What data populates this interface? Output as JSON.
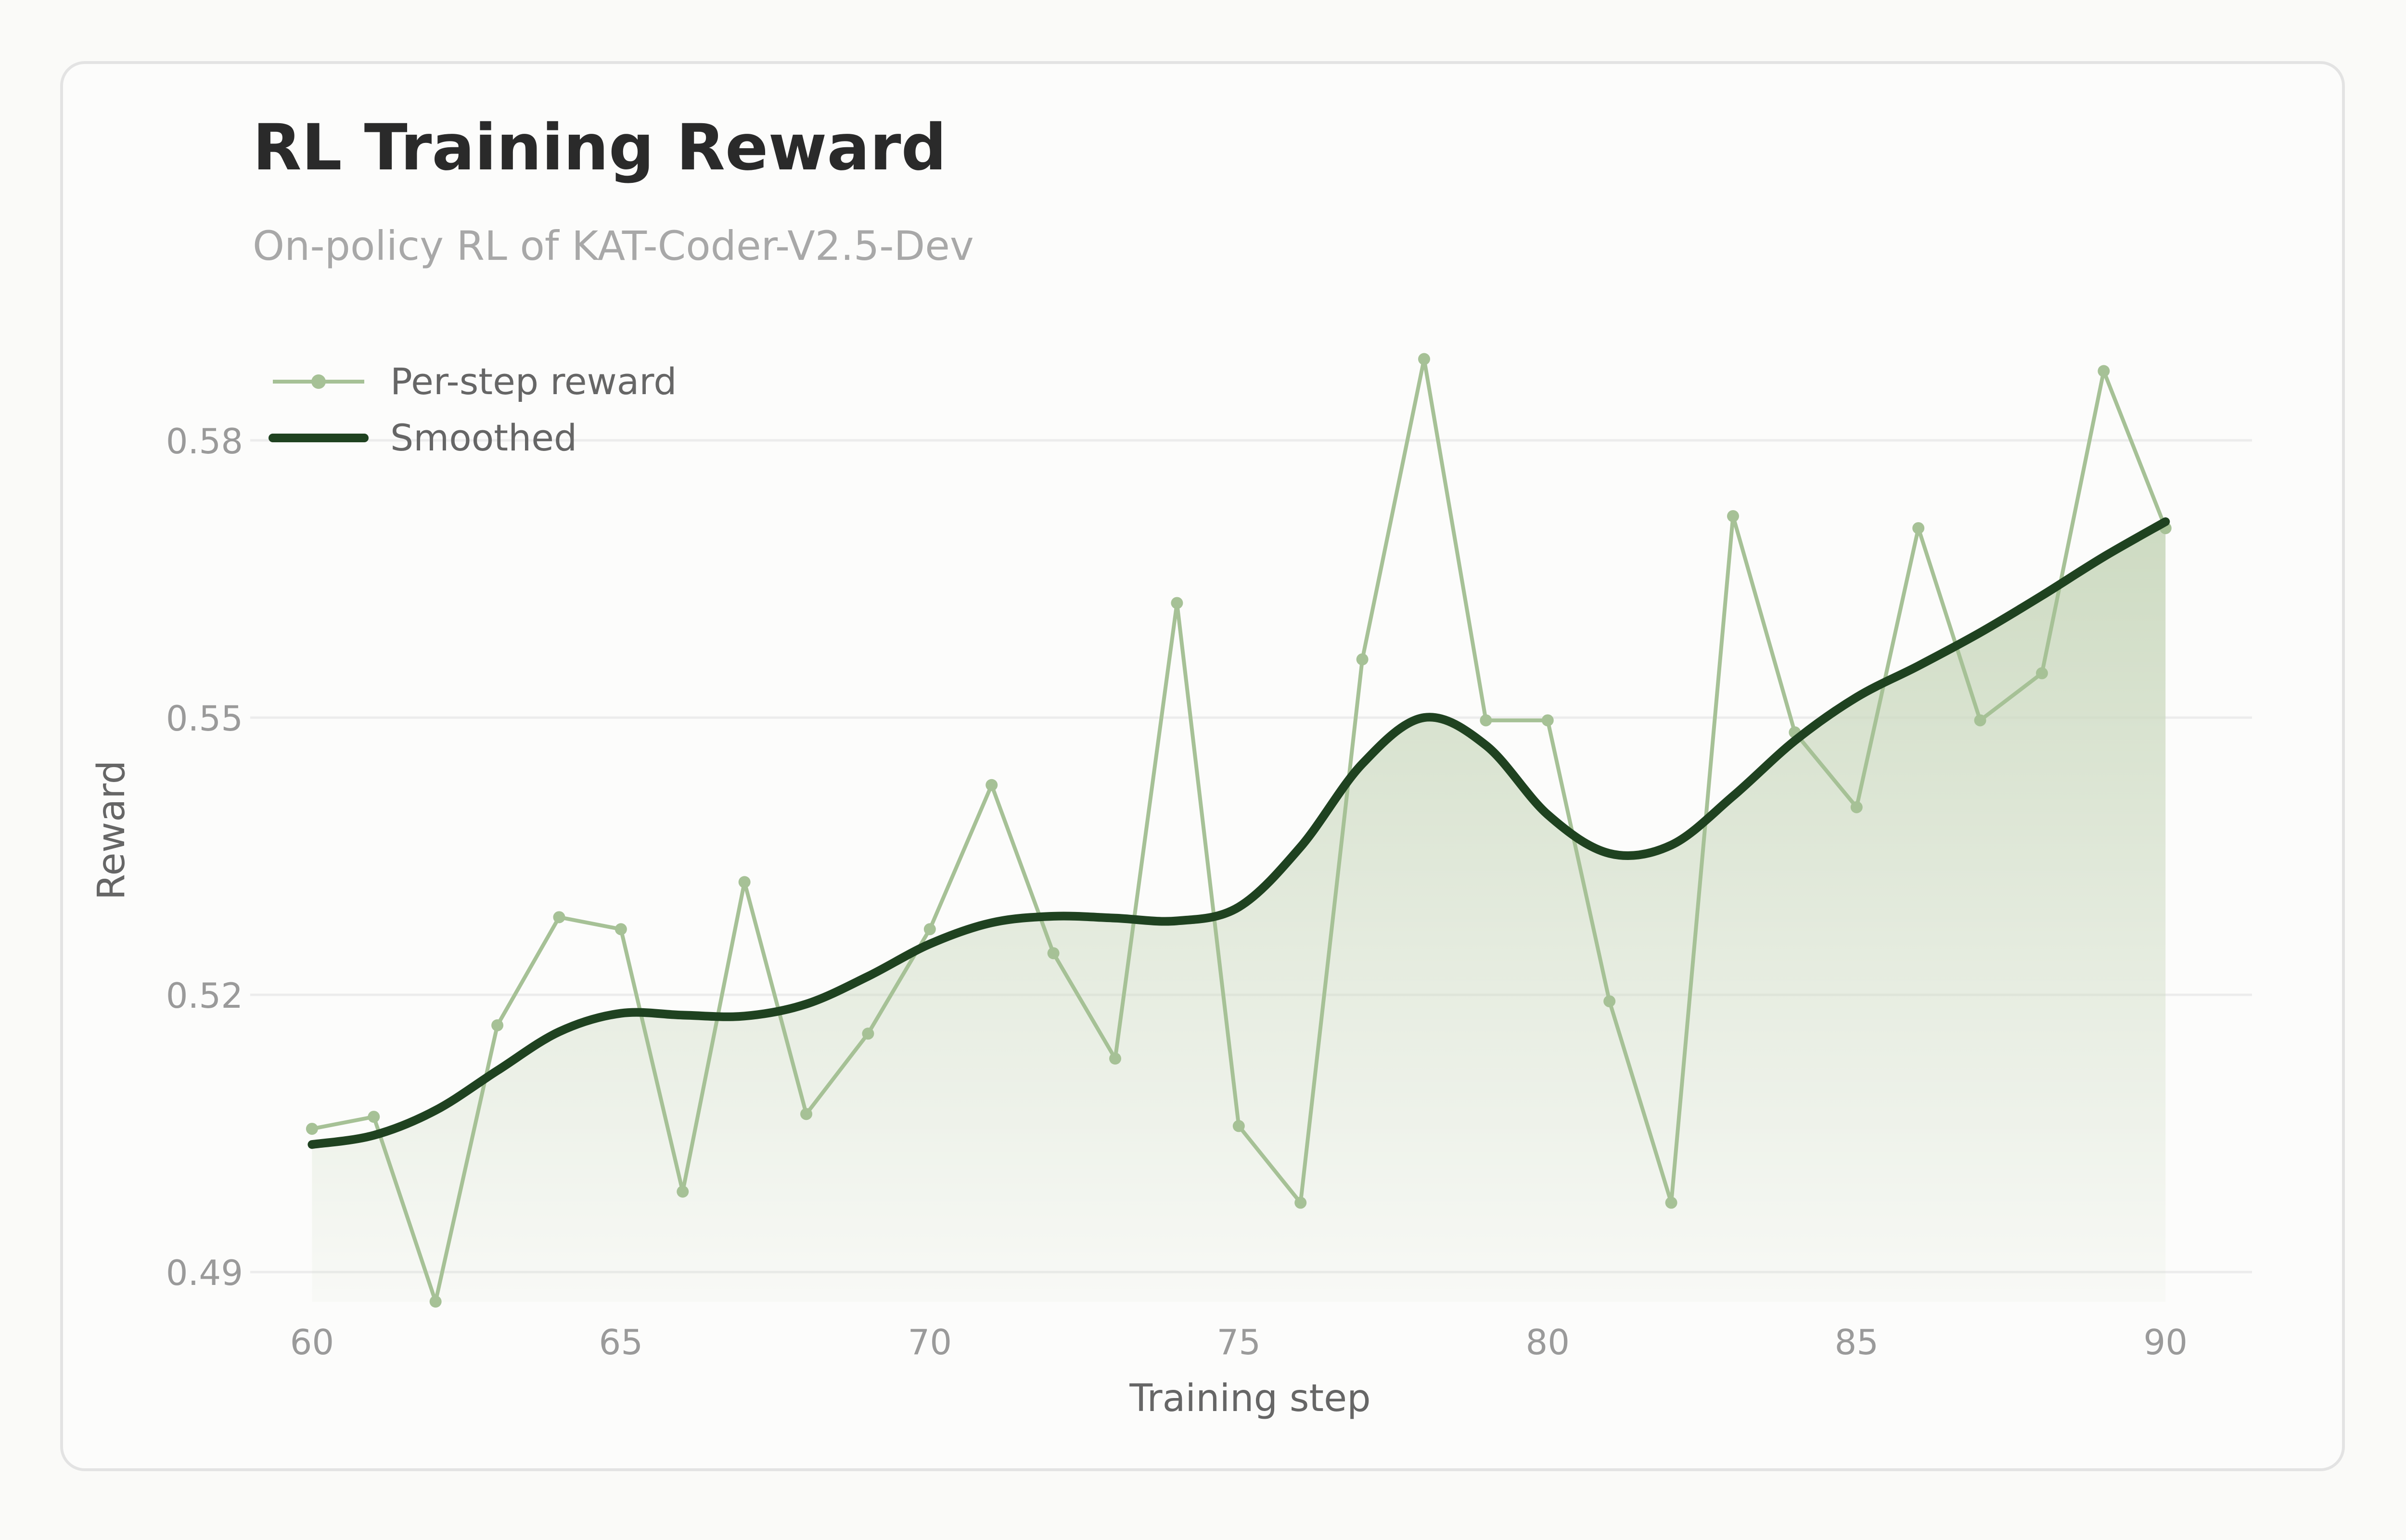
{
  "colors": {
    "background": "#fafaf8",
    "card": "#fcfcfb",
    "card_border": "#e3e3e3",
    "grid": "#ececec",
    "raw_series": "#a6c196",
    "smoothed_series": "#1f4220",
    "area_fill": "#cbd9bf"
  },
  "chart_data": {
    "type": "line",
    "title": "RL Training Reward",
    "subtitle": "On-policy RL of KAT-Coder-V2.5-Dev",
    "xlabel": "Training step",
    "ylabel": "Reward",
    "xlim": [
      59,
      91.4
    ],
    "ylim": [
      0.486,
      0.5925
    ],
    "x_ticks": [
      60,
      65,
      70,
      75,
      80,
      85,
      90
    ],
    "x_tick_labels": [
      "60",
      "65",
      "70",
      "75",
      "80",
      "85",
      "90"
    ],
    "y_ticks": [
      0.49,
      0.52,
      0.55,
      0.58
    ],
    "y_tick_labels": [
      "0.49",
      "0.52",
      "0.55",
      "0.58"
    ],
    "grid": "horizontal",
    "legend_position": "top-left",
    "x": [
      60,
      61,
      62,
      63,
      64,
      65,
      66,
      67,
      68,
      69,
      70,
      71,
      72,
      73,
      74,
      75,
      76,
      77,
      78,
      79,
      80,
      81,
      82,
      83,
      84,
      85,
      86,
      87,
      88,
      89,
      90
    ],
    "series": [
      {
        "name": "Per-step reward",
        "style": "thin line with markers",
        "values": [
          0.5055,
          0.5068,
          0.4868,
          0.5167,
          0.5284,
          0.5271,
          0.4987,
          0.5322,
          0.5071,
          0.5158,
          0.5271,
          0.5427,
          0.5245,
          0.5131,
          0.5624,
          0.5058,
          0.4975,
          0.5563,
          0.5888,
          0.5497,
          0.5497,
          0.5193,
          0.4975,
          0.5718,
          0.5484,
          0.5403,
          0.5705,
          0.5497,
          0.5548,
          0.5875,
          0.5705
        ]
      },
      {
        "name": "Smoothed",
        "style": "thick line with gradient area",
        "values": [
          0.5038,
          0.5048,
          0.5075,
          0.5118,
          0.516,
          0.518,
          0.5178,
          0.5177,
          0.519,
          0.522,
          0.5255,
          0.5278,
          0.5285,
          0.5283,
          0.528,
          0.5295,
          0.536,
          0.545,
          0.55,
          0.547,
          0.5395,
          0.5353,
          0.5362,
          0.5415,
          0.5475,
          0.5522,
          0.5556,
          0.5592,
          0.5632,
          0.5674,
          0.5712
        ]
      }
    ]
  }
}
